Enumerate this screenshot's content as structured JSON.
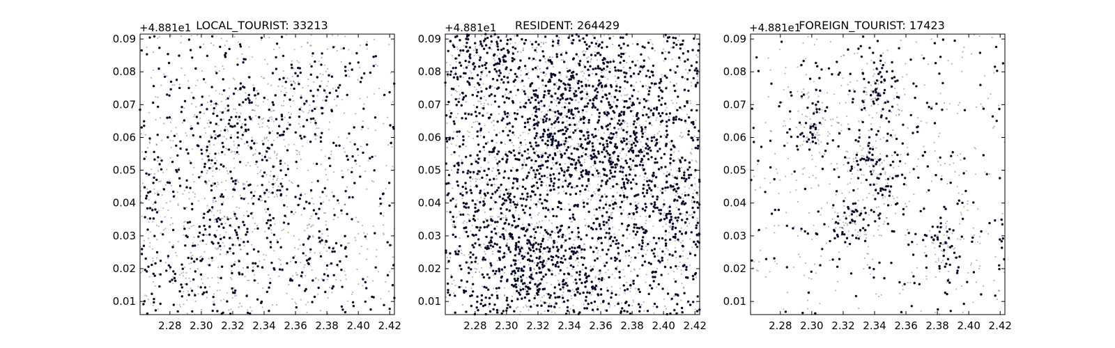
{
  "figure": {
    "background": "#ffffff",
    "marker_color": "#0a0a28",
    "marker_alpha_faint": 0.3,
    "marker_alpha_dense": 1.0
  },
  "chart_data": [
    {
      "type": "scatter",
      "title": "LOCAL_TOURIST: 33213",
      "y_offset_text": "+4.881e1",
      "xlim": [
        2.261,
        2.423
      ],
      "ylim": [
        0.006,
        0.0915
      ],
      "x_ticks": [
        2.28,
        2.3,
        2.32,
        2.34,
        2.36,
        2.38,
        2.4,
        2.42
      ],
      "x_tick_labels": [
        "2.28",
        "2.30",
        "2.32",
        "2.34",
        "2.36",
        "2.38",
        "2.40",
        "2.42"
      ],
      "y_ticks": [
        0.01,
        0.02,
        0.03,
        0.04,
        0.05,
        0.06,
        0.07,
        0.08,
        0.09
      ],
      "y_tick_labels": [
        "0.01",
        "0.02",
        "0.03",
        "0.04",
        "0.05",
        "0.06",
        "0.07",
        "0.08",
        "0.09"
      ],
      "grid": false,
      "sample_points": 1800,
      "spread": 0.045,
      "hotspots": [
        [
          2.325,
          0.066
        ],
        [
          2.345,
          0.048
        ],
        [
          2.366,
          0.071
        ],
        [
          2.31,
          0.058
        ],
        [
          2.32,
          0.03
        ],
        [
          2.29,
          0.019
        ],
        [
          2.265,
          0.04
        ],
        [
          2.372,
          0.028
        ]
      ]
    },
    {
      "type": "scatter",
      "title": "RESIDENT: 264429",
      "y_offset_text": "+4.881e1",
      "xlim": [
        2.261,
        2.423
      ],
      "ylim": [
        0.006,
        0.0915
      ],
      "x_ticks": [
        2.28,
        2.3,
        2.32,
        2.34,
        2.36,
        2.38,
        2.4,
        2.42
      ],
      "x_tick_labels": [
        "2.28",
        "2.30",
        "2.32",
        "2.34",
        "2.36",
        "2.38",
        "2.40",
        "2.42"
      ],
      "y_ticks": [
        0.01,
        0.02,
        0.03,
        0.04,
        0.05,
        0.06,
        0.07,
        0.08,
        0.09
      ],
      "y_tick_labels": [
        "0.01",
        "0.02",
        "0.03",
        "0.04",
        "0.05",
        "0.06",
        "0.07",
        "0.08",
        "0.09"
      ],
      "grid": false,
      "sample_points": 4200,
      "spread": 0.06,
      "hotspots": [
        [
          2.29,
          0.085
        ],
        [
          2.35,
          0.075
        ],
        [
          2.29,
          0.038
        ],
        [
          2.31,
          0.02
        ],
        [
          2.36,
          0.05
        ],
        [
          2.38,
          0.062
        ],
        [
          2.41,
          0.04
        ],
        [
          2.33,
          0.06
        ],
        [
          2.34,
          0.015
        ]
      ]
    },
    {
      "type": "scatter",
      "title": "FOREIGN_TOURIST: 17423",
      "y_offset_text": "+4.881e1",
      "xlim": [
        2.261,
        2.423
      ],
      "ylim": [
        0.006,
        0.0915
      ],
      "x_ticks": [
        2.28,
        2.3,
        2.32,
        2.34,
        2.36,
        2.38,
        2.4,
        2.42
      ],
      "x_tick_labels": [
        "2.28",
        "2.30",
        "2.32",
        "2.34",
        "2.36",
        "2.38",
        "2.40",
        "2.42"
      ],
      "y_ticks": [
        0.01,
        0.02,
        0.03,
        0.04,
        0.05,
        0.06,
        0.07,
        0.08,
        0.09
      ],
      "y_tick_labels": [
        "0.01",
        "0.02",
        "0.03",
        "0.04",
        "0.05",
        "0.06",
        "0.07",
        "0.08",
        "0.09"
      ],
      "grid": false,
      "sample_points": 1100,
      "spread": 0.025,
      "hotspots": [
        [
          2.335,
          0.055
        ],
        [
          2.345,
          0.045
        ],
        [
          2.3,
          0.062
        ],
        [
          2.342,
          0.073
        ],
        [
          2.325,
          0.033
        ],
        [
          2.385,
          0.028
        ]
      ]
    }
  ]
}
